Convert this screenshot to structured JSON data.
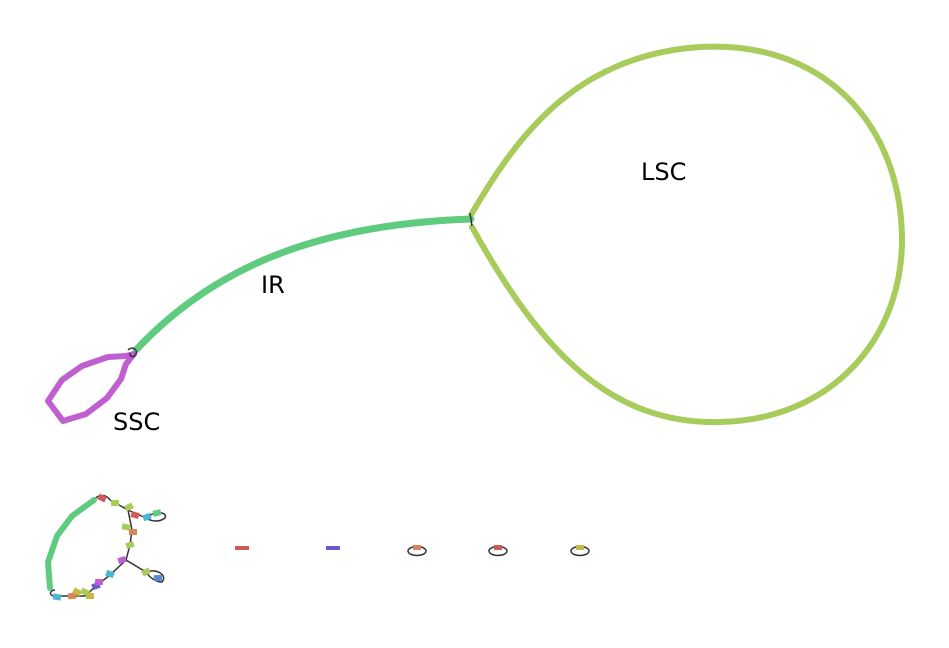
{
  "graph": {
    "segments": [
      {
        "id": "lsc",
        "label": "LSC",
        "color": "#a8cc5c"
      },
      {
        "id": "ir",
        "label": "IR",
        "color": "#5ecb7f"
      },
      {
        "id": "ssc",
        "label": "SSC",
        "color": "#c060d0"
      }
    ],
    "link_color": "#333333"
  },
  "components": {
    "tiny_fragments": [
      {
        "color": "#d05a5a",
        "shape": "dash"
      },
      {
        "color": "#6a5ad0",
        "shape": "dash"
      },
      {
        "color": "#d5875a",
        "shape": "loop"
      },
      {
        "color": "#d05a5a",
        "shape": "loop"
      },
      {
        "color": "#c8b84a",
        "shape": "loop"
      }
    ],
    "small_graph_colors": [
      "#d05a5a",
      "#a8cc5c",
      "#5ecb7f",
      "#4ab8d0",
      "#6a5ad0",
      "#c060d0",
      "#d5875a",
      "#c8b84a",
      "#5a8ad0"
    ]
  }
}
